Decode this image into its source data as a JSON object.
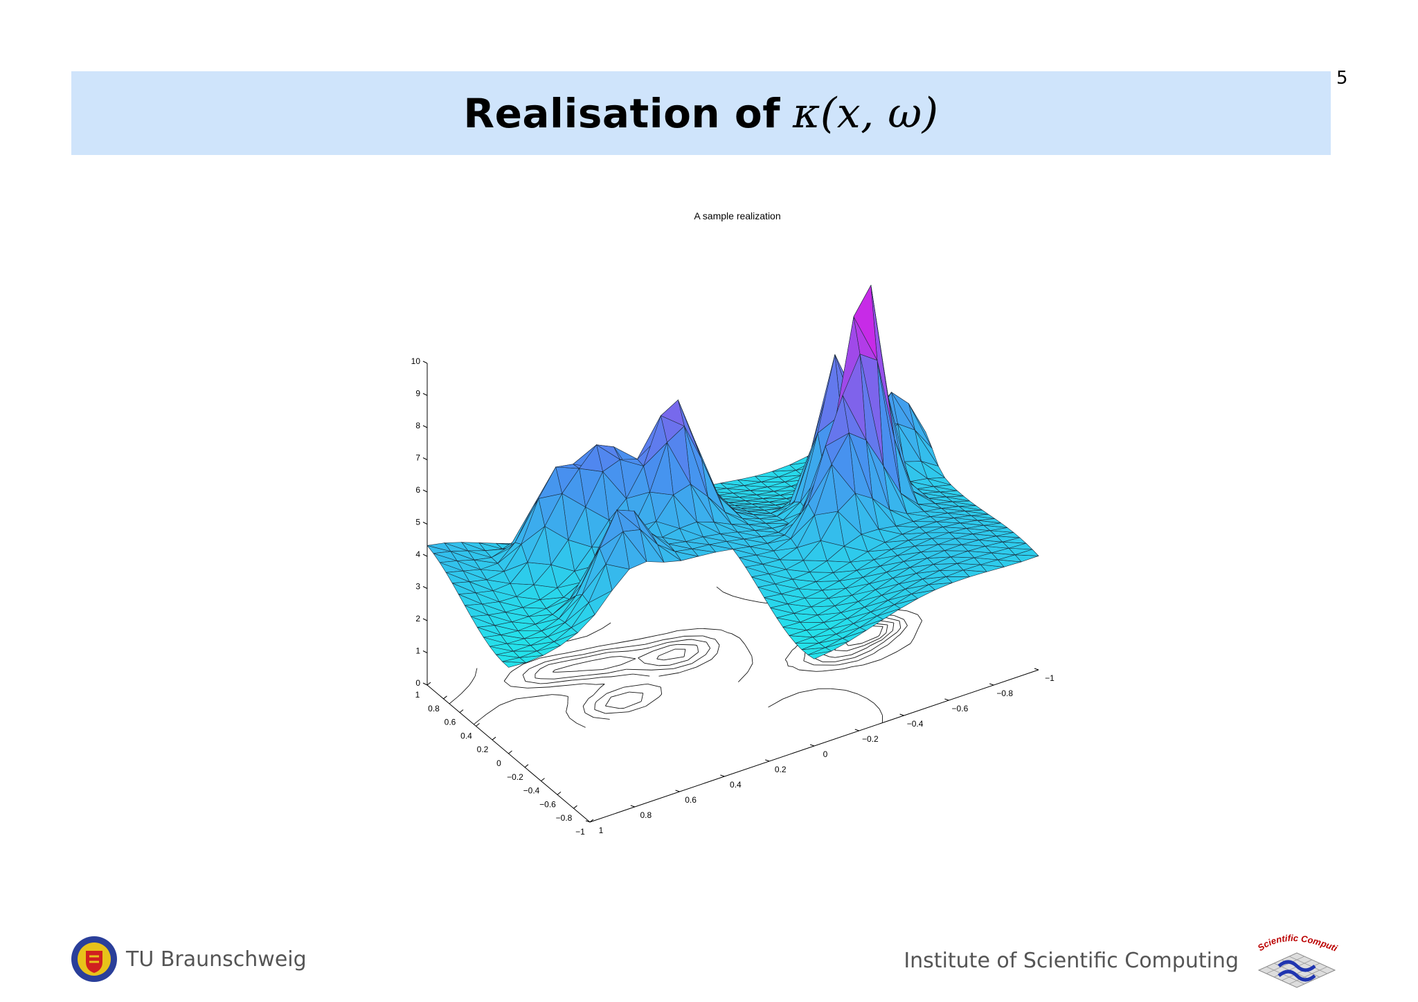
{
  "slide": {
    "title_text": "Realisation of",
    "title_math": "κ(x, ω)",
    "page_number": "5"
  },
  "footer": {
    "left_text": "TU Braunschweig",
    "right_text": "Institute of Scientific Computing",
    "logo_text": "Scientific Computing",
    "seal_icon": "tu-braunschweig-seal-icon",
    "logo_icon": "scientific-computing-logo-icon"
  },
  "colors": {
    "title_band": "#cfe4fb",
    "surface_low": "#22e6ea",
    "surface_mid": "#4a8cef",
    "surface_high": "#d024e6"
  },
  "chart_data": {
    "type": "surface",
    "title": "A sample realization",
    "xlim": [
      -1,
      1
    ],
    "ylim": [
      -1,
      1
    ],
    "zlim": [
      0,
      10
    ],
    "z_ticks": [
      "0",
      "1",
      "2",
      "3",
      "4",
      "5",
      "6",
      "7",
      "8",
      "9",
      "10"
    ],
    "x_ticks": [
      "1",
      "0.8",
      "0.6",
      "0.4",
      "0.2",
      "0",
      "−0.2",
      "−0.4",
      "−0.6",
      "−0.8",
      "−1"
    ],
    "y_ticks": [
      "1",
      "0.8",
      "0.6",
      "0.4",
      "0.2",
      "0",
      "−0.2",
      "−0.4",
      "−0.6",
      "−0.8",
      "−1"
    ],
    "base_contour": true,
    "domain": "L-shaped (quadrant x<0, y>0 removed)",
    "baseline_level": 3.5,
    "peaks": [
      {
        "x": 0.0,
        "y": -0.6,
        "z": 10.1
      },
      {
        "x": 0.25,
        "y": -0.55,
        "z": 8.4
      },
      {
        "x": 0.45,
        "y": 0.1,
        "z": 7.4
      },
      {
        "x": 0.6,
        "y": 0.35,
        "z": 6.6
      },
      {
        "x": 0.7,
        "y": 0.55,
        "z": 6.3
      },
      {
        "x": 0.15,
        "y": 0.45,
        "z": 5.9
      },
      {
        "x": -0.1,
        "y": -0.45,
        "z": 7.0
      },
      {
        "x": 0.4,
        "y": -0.85,
        "z": 6.0
      }
    ]
  }
}
